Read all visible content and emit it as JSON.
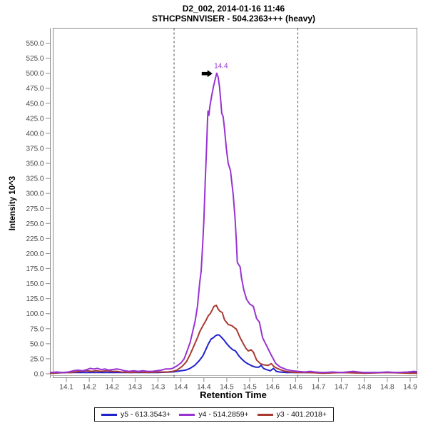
{
  "chart_data": {
    "type": "line",
    "title": "D2_002, 2014-01-16 11:46",
    "subtitle": "STHCPSNNVISER - 504.2363+++ (heavy)",
    "xlabel": "Retention Time",
    "ylabel": "Intensity 10^3",
    "xlim": [
      14.06,
      14.87
    ],
    "ylim": [
      0,
      573
    ],
    "grid": false,
    "legend_position": "bottom",
    "x_ticks": {
      "values": [
        14.1,
        14.15,
        14.2,
        14.25,
        14.3,
        14.35,
        14.4,
        14.45,
        14.5,
        14.55,
        14.6,
        14.65,
        14.7,
        14.75,
        14.8,
        14.85
      ],
      "labels": [
        "14.1",
        "14.2",
        "14.2",
        "14.3",
        "14.3",
        "14.4",
        "14.4",
        "14.5",
        "14.5",
        "14.6",
        "14.6",
        "14.7",
        "14.7",
        "14.8",
        "14.8",
        "14.9"
      ]
    },
    "y_ticks": {
      "values": [
        0,
        25,
        50,
        75,
        100,
        125,
        150,
        175,
        200,
        225,
        250,
        275,
        300,
        325,
        350,
        375,
        400,
        425,
        450,
        475,
        500,
        525,
        550
      ],
      "labels": [
        "0.0",
        "25.0",
        "50.0",
        "75.0",
        "100.0",
        "125.0",
        "150.0",
        "175.0",
        "200.0",
        "225.0",
        "250.0",
        "275.0",
        "300.0",
        "325.0",
        "350.0",
        "375.0",
        "400.0",
        "425.0",
        "450.0",
        "475.0",
        "500.0",
        "525.0",
        "550.0"
      ]
    },
    "boundaries": {
      "start": 14.335,
      "end": 14.605,
      "style": "dashed"
    },
    "annotation": {
      "label": "14.4",
      "t": 14.428,
      "v": 500,
      "color": "#9833D1"
    },
    "series": [
      {
        "name": "y5 - 613.3543+",
        "color": "#2222CC",
        "points": [
          [
            14.065,
            1
          ],
          [
            14.1,
            2
          ],
          [
            14.14,
            2
          ],
          [
            14.18,
            2
          ],
          [
            14.22,
            2
          ],
          [
            14.26,
            2
          ],
          [
            14.3,
            2
          ],
          [
            14.33,
            3
          ],
          [
            14.341,
            4
          ],
          [
            14.35,
            5
          ],
          [
            14.36,
            6
          ],
          [
            14.37,
            9
          ],
          [
            14.38,
            14
          ],
          [
            14.39,
            22
          ],
          [
            14.398,
            30
          ],
          [
            14.404,
            40
          ],
          [
            14.41,
            50
          ],
          [
            14.416,
            58
          ],
          [
            14.421,
            60
          ],
          [
            14.425,
            63
          ],
          [
            14.43,
            65
          ],
          [
            14.434,
            64
          ],
          [
            14.438,
            61
          ],
          [
            14.444,
            56
          ],
          [
            14.45,
            50
          ],
          [
            14.457,
            44
          ],
          [
            14.463,
            40
          ],
          [
            14.469,
            38
          ],
          [
            14.476,
            30
          ],
          [
            14.482,
            25
          ],
          [
            14.489,
            20
          ],
          [
            14.495,
            17
          ],
          [
            14.505,
            13
          ],
          [
            14.513,
            11
          ],
          [
            14.52,
            11
          ],
          [
            14.525,
            14
          ],
          [
            14.53,
            9
          ],
          [
            14.536,
            7
          ],
          [
            14.545,
            5
          ],
          [
            14.552,
            9
          ],
          [
            14.558,
            4
          ],
          [
            14.565,
            3
          ],
          [
            14.58,
            2
          ],
          [
            14.6,
            2
          ],
          [
            14.65,
            2
          ],
          [
            14.7,
            2
          ],
          [
            14.75,
            2
          ],
          [
            14.8,
            2
          ],
          [
            14.85,
            2
          ],
          [
            14.87,
            2
          ]
        ]
      },
      {
        "name": "y4 - 514.2859+",
        "color": "#9833D1",
        "points": [
          [
            14.065,
            2
          ],
          [
            14.08,
            3
          ],
          [
            14.09,
            2
          ],
          [
            14.105,
            3
          ],
          [
            14.115,
            5
          ],
          [
            14.125,
            6
          ],
          [
            14.135,
            5
          ],
          [
            14.145,
            7
          ],
          [
            14.152,
            9
          ],
          [
            14.16,
            8
          ],
          [
            14.168,
            9
          ],
          [
            14.176,
            7
          ],
          [
            14.185,
            8
          ],
          [
            14.192,
            6
          ],
          [
            14.2,
            7
          ],
          [
            14.21,
            8
          ],
          [
            14.218,
            7
          ],
          [
            14.227,
            5
          ],
          [
            14.237,
            4
          ],
          [
            14.247,
            5
          ],
          [
            14.257,
            4
          ],
          [
            14.267,
            5
          ],
          [
            14.277,
            4
          ],
          [
            14.287,
            4
          ],
          [
            14.297,
            5
          ],
          [
            14.307,
            6
          ],
          [
            14.316,
            8
          ],
          [
            14.324,
            8
          ],
          [
            14.332,
            9
          ],
          [
            14.341,
            13
          ],
          [
            14.35,
            18
          ],
          [
            14.357,
            25
          ],
          [
            14.363,
            37
          ],
          [
            14.37,
            52
          ],
          [
            14.375,
            68
          ],
          [
            14.381,
            88
          ],
          [
            14.386,
            112
          ],
          [
            14.391,
            152
          ],
          [
            14.394,
            171
          ],
          [
            14.397,
            210
          ],
          [
            14.4,
            255
          ],
          [
            14.403,
            320
          ],
          [
            14.406,
            380
          ],
          [
            14.408,
            425
          ],
          [
            14.409,
            437
          ],
          [
            14.411,
            430
          ],
          [
            14.413,
            445
          ],
          [
            14.417,
            462
          ],
          [
            14.421,
            478
          ],
          [
            14.425,
            491
          ],
          [
            14.428,
            500
          ],
          [
            14.431,
            494
          ],
          [
            14.434,
            478
          ],
          [
            14.437,
            452
          ],
          [
            14.439,
            433
          ],
          [
            14.442,
            428
          ],
          [
            14.445,
            408
          ],
          [
            14.449,
            375
          ],
          [
            14.453,
            350
          ],
          [
            14.458,
            338
          ],
          [
            14.464,
            298
          ],
          [
            14.468,
            259
          ],
          [
            14.471,
            219
          ],
          [
            14.473,
            185
          ],
          [
            14.479,
            178
          ],
          [
            14.482,
            160
          ],
          [
            14.487,
            140
          ],
          [
            14.493,
            124
          ],
          [
            14.5,
            116
          ],
          [
            14.508,
            112
          ],
          [
            14.515,
            92
          ],
          [
            14.521,
            86
          ],
          [
            14.528,
            60
          ],
          [
            14.536,
            48
          ],
          [
            14.547,
            31
          ],
          [
            14.557,
            17
          ],
          [
            14.567,
            11
          ],
          [
            14.58,
            7
          ],
          [
            14.593,
            5
          ],
          [
            14.605,
            4
          ],
          [
            14.62,
            3
          ],
          [
            14.632,
            4
          ],
          [
            14.642,
            3
          ],
          [
            14.66,
            2
          ],
          [
            14.68,
            3
          ],
          [
            14.7,
            2
          ],
          [
            14.726,
            4
          ],
          [
            14.737,
            3
          ],
          [
            14.75,
            2
          ],
          [
            14.78,
            2
          ],
          [
            14.8,
            3
          ],
          [
            14.82,
            2
          ],
          [
            14.845,
            3
          ],
          [
            14.858,
            4
          ],
          [
            14.87,
            3
          ]
        ]
      },
      {
        "name": "y3 - 401.2018+",
        "color": "#A93A32",
        "points": [
          [
            14.065,
            1
          ],
          [
            14.09,
            2
          ],
          [
            14.11,
            2
          ],
          [
            14.13,
            4
          ],
          [
            14.145,
            5
          ],
          [
            14.155,
            4
          ],
          [
            14.165,
            5
          ],
          [
            14.175,
            4
          ],
          [
            14.19,
            5
          ],
          [
            14.2,
            4
          ],
          [
            14.21,
            4
          ],
          [
            14.22,
            3
          ],
          [
            14.24,
            2
          ],
          [
            14.26,
            3
          ],
          [
            14.28,
            2
          ],
          [
            14.3,
            3
          ],
          [
            14.32,
            3
          ],
          [
            14.332,
            4
          ],
          [
            14.341,
            6
          ],
          [
            14.352,
            12
          ],
          [
            14.362,
            20
          ],
          [
            14.37,
            32
          ],
          [
            14.378,
            46
          ],
          [
            14.386,
            60
          ],
          [
            14.391,
            70
          ],
          [
            14.398,
            80
          ],
          [
            14.404,
            88
          ],
          [
            14.41,
            97
          ],
          [
            14.414,
            100
          ],
          [
            14.418,
            106
          ],
          [
            14.422,
            112
          ],
          [
            14.427,
            114
          ],
          [
            14.431,
            108
          ],
          [
            14.435,
            104
          ],
          [
            14.44,
            102
          ],
          [
            14.445,
            90
          ],
          [
            14.453,
            82
          ],
          [
            14.461,
            80
          ],
          [
            14.466,
            77
          ],
          [
            14.471,
            74
          ],
          [
            14.479,
            60
          ],
          [
            14.486,
            50
          ],
          [
            14.492,
            42
          ],
          [
            14.497,
            38
          ],
          [
            14.503,
            40
          ],
          [
            14.508,
            36
          ],
          [
            14.515,
            23
          ],
          [
            14.523,
            17
          ],
          [
            14.53,
            15
          ],
          [
            14.54,
            14
          ],
          [
            14.547,
            17
          ],
          [
            14.553,
            12
          ],
          [
            14.56,
            9
          ],
          [
            14.573,
            5
          ],
          [
            14.588,
            3
          ],
          [
            14.6,
            2
          ],
          [
            14.63,
            2
          ],
          [
            14.66,
            1
          ],
          [
            14.7,
            2
          ],
          [
            14.75,
            1
          ],
          [
            14.8,
            2
          ],
          [
            14.85,
            1
          ],
          [
            14.87,
            1
          ]
        ]
      }
    ]
  }
}
